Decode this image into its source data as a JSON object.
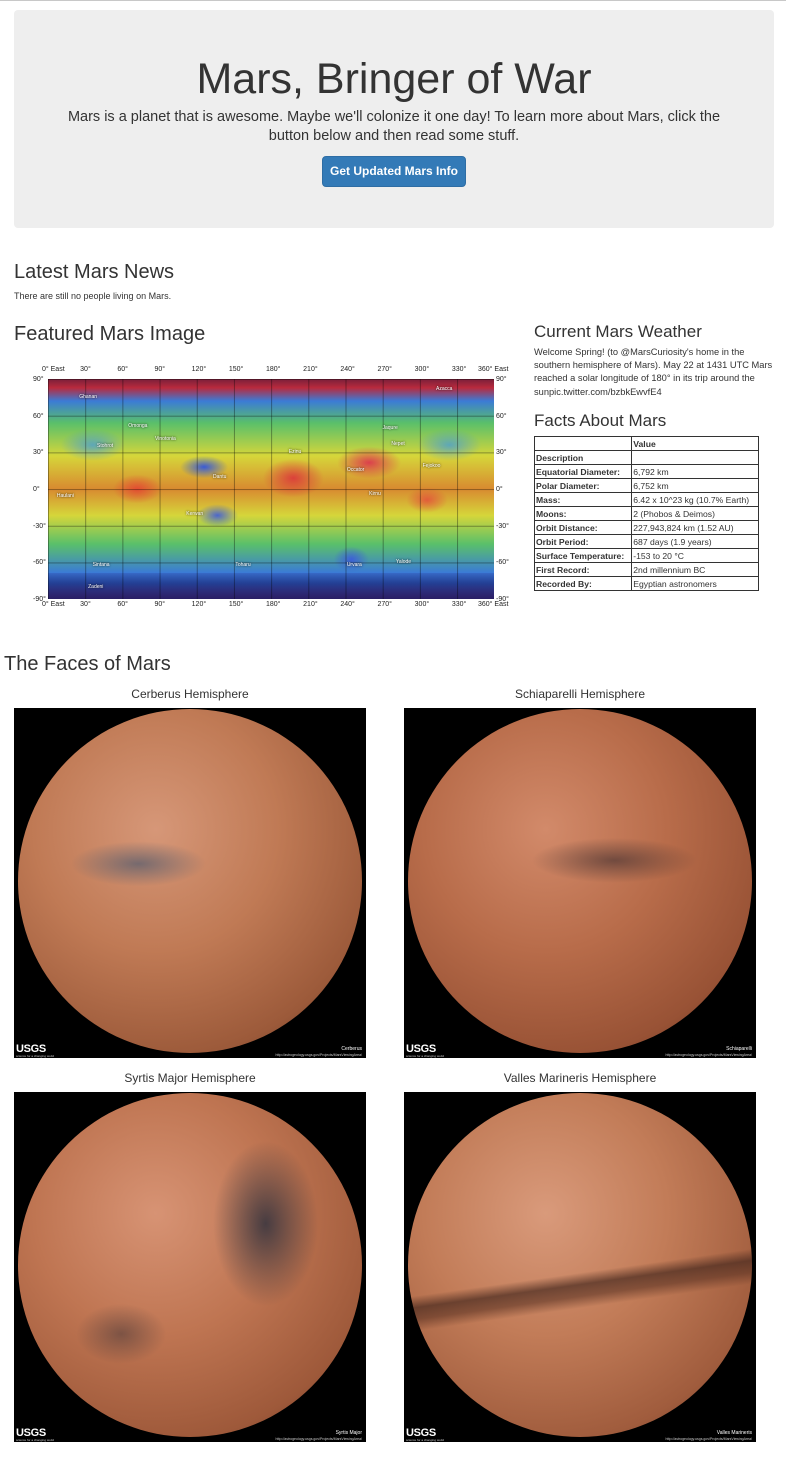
{
  "jumbotron": {
    "title": "Mars, Bringer of War",
    "subtitle": "Mars is a planet that is awesome. Maybe we'll colonize it one day! To learn more about Mars, click the button below and then read some stuff.",
    "button_label": "Get Updated Mars Info",
    "button_color": "#337ab7"
  },
  "news": {
    "heading": "Latest Mars News",
    "text": "There are still no people living on Mars."
  },
  "featured": {
    "heading": "Featured Mars Image",
    "map": {
      "top_ticks": [
        "0° East",
        "30°",
        "60°",
        "90°",
        "120°",
        "150°",
        "180°",
        "210°",
        "240°",
        "270°",
        "300°",
        "330°",
        "360° East"
      ],
      "bottom_ticks": [
        "0° East",
        "30°",
        "60°",
        "90°",
        "120°",
        "150°",
        "180°",
        "210°",
        "240°",
        "270°",
        "300°",
        "330°",
        "360° East"
      ],
      "left_ticks": [
        "90°",
        "60°",
        "30°",
        "0°",
        "-30°",
        "-60°",
        "-90°"
      ],
      "right_ticks": [
        "90°",
        "60°",
        "30°",
        "0°",
        "-30°",
        "-60°",
        "-90°"
      ],
      "features": [
        "Ghanan",
        "Omonga",
        "Stohrot",
        "Vinotonia",
        "Ezinu",
        "Dantu",
        "Occator",
        "Kerwan",
        "Urvara",
        "Yalode",
        "Zadeni",
        "Haulani",
        "Jaqure",
        "Azacca",
        "Kirnu",
        "Toharu",
        "Sintana",
        "Fejokoo",
        "Nepet"
      ]
    }
  },
  "weather": {
    "heading": "Current Mars Weather",
    "text": "Welcome Spring! (to @MarsCuriosity's home in the southern hemisphere of Mars). May 22 at 1431 UTC Mars reached a solar longitude of 180° in its trip around the sunpic.twitter.com/bzbkEwvfE4"
  },
  "facts": {
    "heading": "Facts About Mars",
    "header_value": "Value",
    "header_description": "Description",
    "rows": [
      {
        "k": "Equatorial Diameter:",
        "v": "6,792 km"
      },
      {
        "k": "Polar Diameter:",
        "v": "6,752 km"
      },
      {
        "k": "Mass:",
        "v": "6.42 x 10^23 kg (10.7% Earth)"
      },
      {
        "k": "Moons:",
        "v": "2 (Phobos & Deimos)"
      },
      {
        "k": "Orbit Distance:",
        "v": "227,943,824 km (1.52 AU)"
      },
      {
        "k": "Orbit Period:",
        "v": "687 days (1.9 years)"
      },
      {
        "k": "Surface Temperature:",
        "v": "-153 to 20 °C"
      },
      {
        "k": "First Record:",
        "v": "2nd millennium BC"
      },
      {
        "k": "Recorded By:",
        "v": "Egyptian astronomers"
      }
    ]
  },
  "faces": {
    "heading": "The Faces of Mars",
    "hemispheres": [
      {
        "title": "Cerberus Hemisphere",
        "label": "Cerberus"
      },
      {
        "title": "Schiaparelli Hemisphere",
        "label": "Schiaparelli"
      },
      {
        "title": "Syrtis Major Hemisphere",
        "label": "Syrtis Major"
      },
      {
        "title": "Valles Marineris Hemisphere",
        "label": "Valles Marineris"
      }
    ],
    "logo_text": "USGS",
    "logo_sub": "science for a changing world",
    "image_url_text": "http://astrogeology.usgs.gov/Projects/MarsViewingArea/"
  }
}
